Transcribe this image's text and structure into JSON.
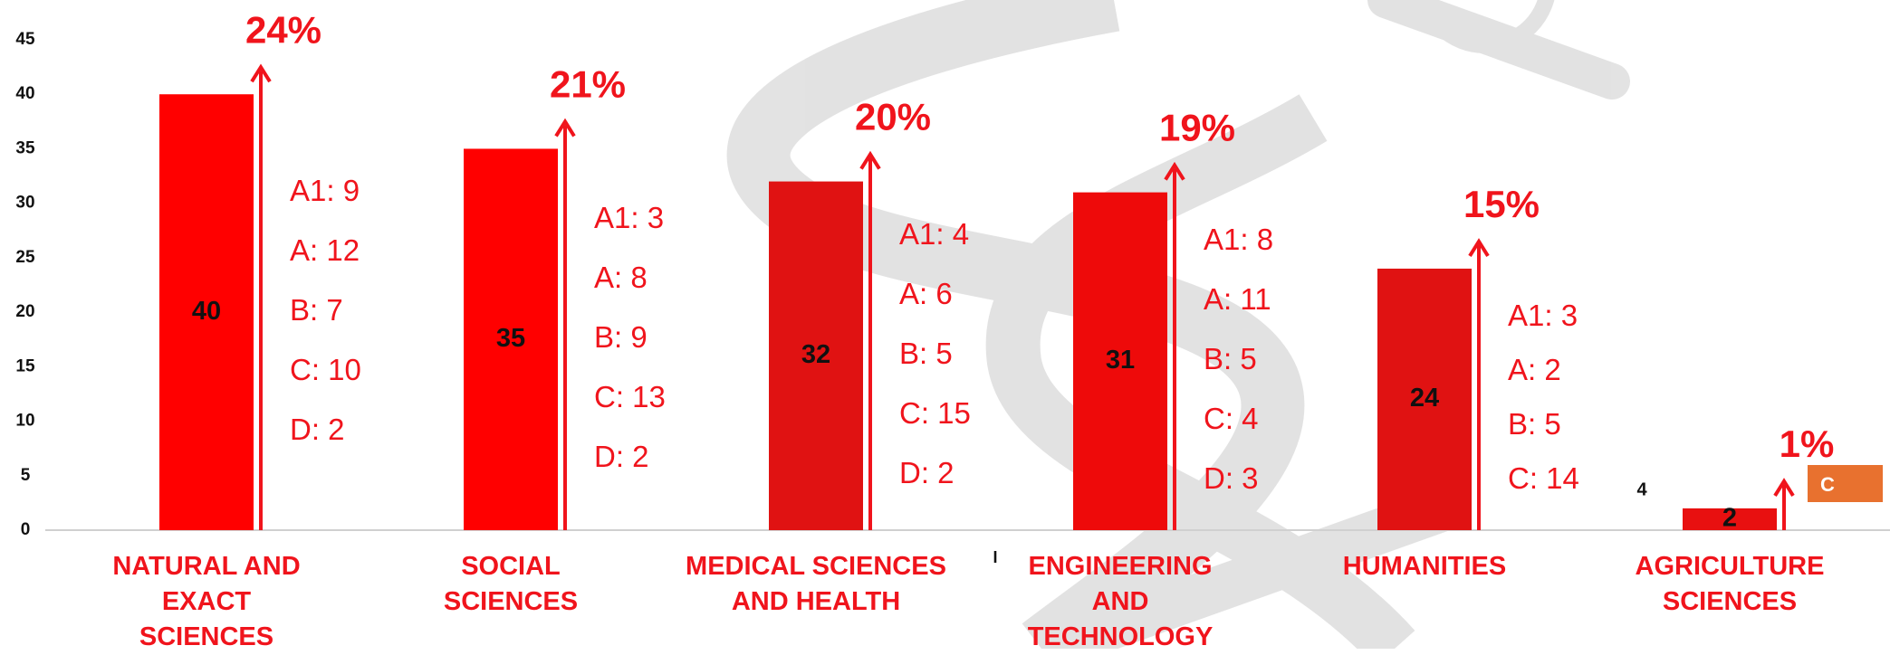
{
  "chart_data": {
    "type": "bar",
    "categories": [
      "NATURAL AND\nEXACT\nSCIENCES",
      "SOCIAL\nSCIENCES",
      "MEDICAL SCIENCES\nAND HEALTH",
      "ENGINEERING\nAND\nTECHNOLOGY",
      "HUMANITIES",
      "AGRICULTURE\nSCIENCES"
    ],
    "values": [
      40,
      35,
      32,
      31,
      24,
      2
    ],
    "colors": [
      "#ff0000",
      "#ff0000",
      "#e01212",
      "#ee0a0a",
      "#e01212",
      "#e81010"
    ],
    "percent_labels": [
      "24%",
      "21%",
      "20%",
      "19%",
      "15%",
      "1%"
    ],
    "breakdowns": [
      [
        "A1: 9",
        "A: 12",
        "B: 7",
        "C: 10",
        "D: 2"
      ],
      [
        "A1: 3",
        "A: 8",
        "B: 9",
        "C: 13",
        "D: 2"
      ],
      [
        "A1: 4",
        "A: 6",
        "B: 5",
        "C: 15",
        "D: 2"
      ],
      [
        "A1: 8",
        "A: 11",
        "B: 5",
        "C: 4",
        "D: 3"
      ],
      [
        "A1: 3",
        "A: 2",
        "B: 5",
        "C: 14"
      ],
      []
    ],
    "annotations": [
      "4",
      "C",
      "I"
    ],
    "ylim": [
      0,
      45
    ],
    "yticks": [
      0,
      5,
      10,
      15,
      20,
      25,
      30,
      35,
      40,
      45
    ]
  }
}
